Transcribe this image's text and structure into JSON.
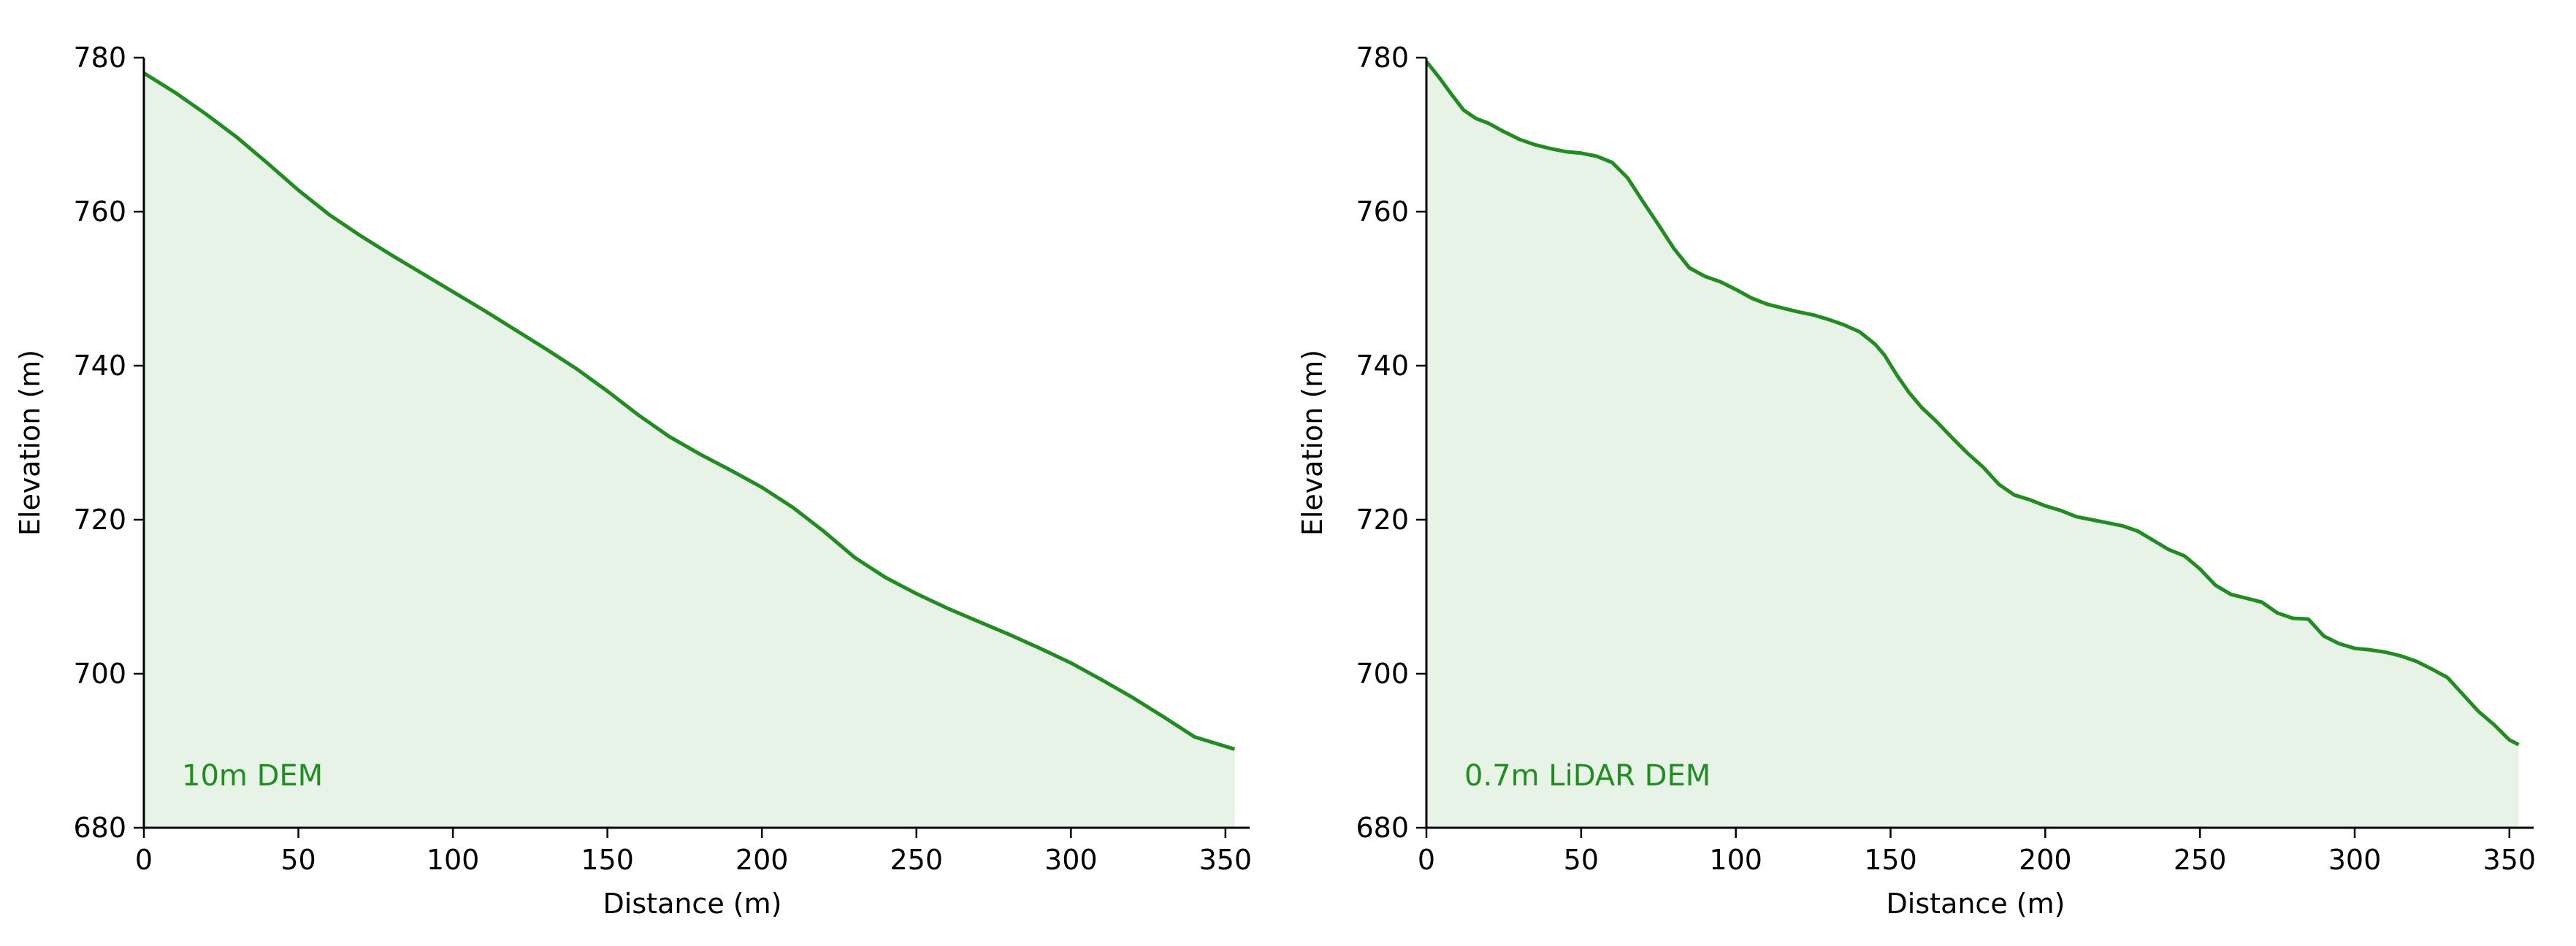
{
  "chart_data": [
    {
      "type": "area",
      "title": "",
      "annotation": "10m DEM",
      "xlabel": "Distance (m)",
      "ylabel": "Elevation (m)",
      "xlim": [
        0,
        355
      ],
      "ylim": [
        680,
        780
      ],
      "xticks": [
        "0",
        "50",
        "100",
        "150",
        "200",
        "250",
        "300",
        "350"
      ],
      "yticks": [
        "680",
        "700",
        "720",
        "740",
        "760",
        "780"
      ],
      "line_color": "#228B22",
      "fill_color": "#E7F3E7",
      "grid": false,
      "series": [
        {
          "x": [
            0,
            10,
            20,
            30,
            40,
            50,
            60,
            70,
            80,
            90,
            100,
            110,
            120,
            130,
            140,
            150,
            160,
            170,
            180,
            190,
            200,
            210,
            220,
            230,
            240,
            250,
            260,
            270,
            280,
            290,
            300,
            310,
            320,
            330,
            340,
            353
          ],
          "y": [
            778,
            775.5,
            772.7,
            769.7,
            766.3,
            762.8,
            759.6,
            756.9,
            754.4,
            752,
            749.6,
            747.2,
            744.7,
            742.2,
            739.6,
            736.7,
            733.6,
            730.8,
            728.5,
            726.4,
            724.2,
            721.6,
            718.5,
            715.1,
            712.5,
            710.4,
            708.5,
            706.8,
            705.1,
            703.3,
            701.4,
            699.2,
            696.9,
            694.4,
            691.8,
            690.2
          ]
        }
      ]
    },
    {
      "type": "area",
      "title": "",
      "annotation": "0.7m LiDAR DEM",
      "xlabel": "Distance (m)",
      "ylabel": "Elevation (m)",
      "xlim": [
        0,
        355
      ],
      "ylim": [
        680,
        780
      ],
      "xticks": [
        "0",
        "50",
        "100",
        "150",
        "200",
        "250",
        "300",
        "350"
      ],
      "yticks": [
        "680",
        "700",
        "720",
        "740",
        "760",
        "780"
      ],
      "line_color": "#228B22",
      "fill_color": "#E7F3E7",
      "grid": false,
      "series": [
        {
          "x": [
            0,
            4,
            8,
            12,
            16,
            20,
            25,
            30,
            35,
            40,
            45,
            50,
            55,
            60,
            65,
            70,
            75,
            80,
            85,
            90,
            95,
            100,
            105,
            110,
            115,
            120,
            125,
            130,
            135,
            140,
            145,
            148,
            152,
            156,
            160,
            165,
            170,
            175,
            180,
            185,
            190,
            195,
            200,
            205,
            210,
            215,
            220,
            225,
            230,
            235,
            240,
            245,
            250,
            255,
            260,
            265,
            270,
            275,
            280,
            285,
            290,
            295,
            300,
            305,
            310,
            315,
            320,
            325,
            330,
            335,
            340,
            345,
            350,
            353
          ],
          "y": [
            779.5,
            777.5,
            775.3,
            773.2,
            772.1,
            771.5,
            770.4,
            769.4,
            768.7,
            768.2,
            767.8,
            767.6,
            767.2,
            766.4,
            764.4,
            761.3,
            758.3,
            755.2,
            752.7,
            751.6,
            750.9,
            749.9,
            748.8,
            748,
            747.5,
            747,
            746.6,
            746,
            745.3,
            744.4,
            742.8,
            741.4,
            738.8,
            736.5,
            734.6,
            732.7,
            730.6,
            728.6,
            726.8,
            724.6,
            723.2,
            722.6,
            721.8,
            721.2,
            720.4,
            720,
            719.6,
            719.2,
            718.5,
            717.3,
            716.1,
            715.3,
            713.6,
            711.5,
            710.3,
            709.8,
            709.3,
            707.9,
            707.2,
            707.1,
            704.9,
            703.9,
            703.3,
            703.1,
            702.8,
            702.3,
            701.6,
            700.6,
            699.5,
            697.3,
            695.1,
            693.4,
            691.4,
            690.8
          ]
        }
      ]
    }
  ]
}
